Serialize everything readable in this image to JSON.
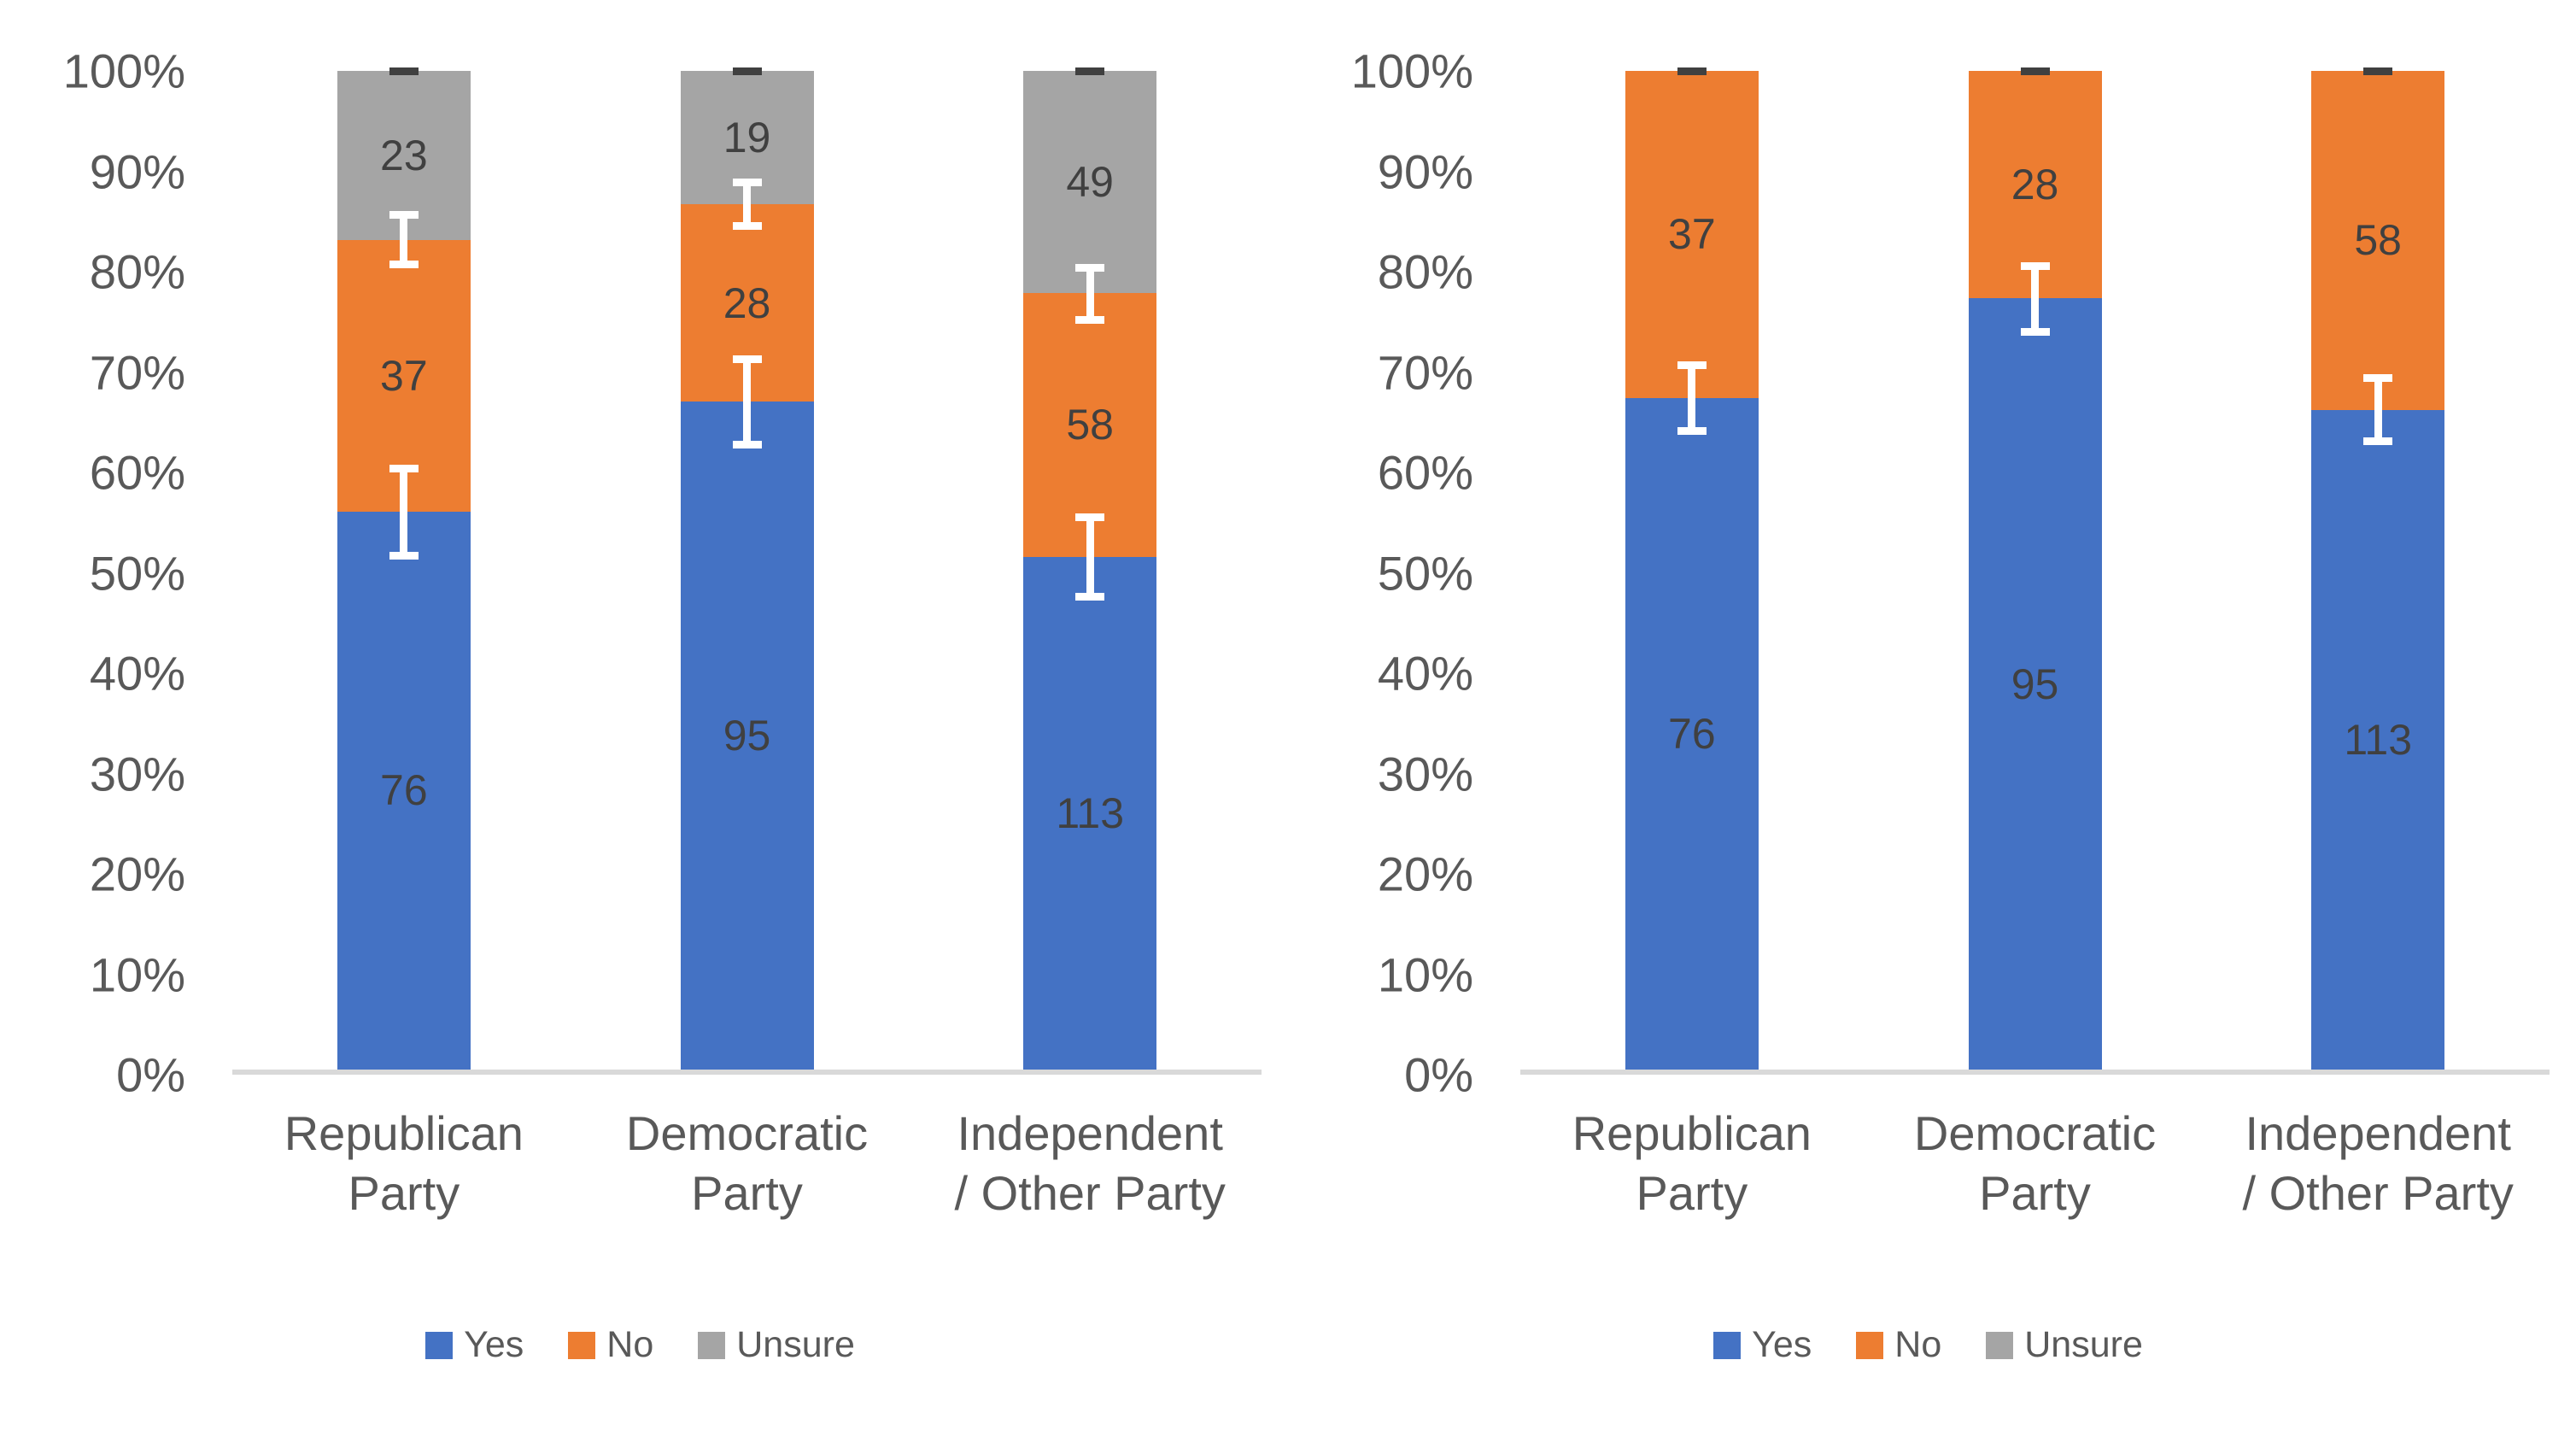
{
  "page": {
    "background": "#ffffff"
  },
  "colors": {
    "yes": "#4472C4",
    "no": "#ED7D31",
    "unsure": "#A5A5A5",
    "axis_line": "#D9D9D9",
    "tick_text": "#595959",
    "category_text": "#595959",
    "value_label_text": "#404040",
    "error_bar": "#FFFFFF",
    "top_dash": "#404040",
    "legend_text": "#595959"
  },
  "y_axis_ticks": [
    "100%",
    "90%",
    "80%",
    "70%",
    "60%",
    "50%",
    "40%",
    "30%",
    "20%",
    "10%",
    "0%"
  ],
  "legend": {
    "position": "bottom",
    "items": [
      {
        "label": "Yes",
        "color": "#4472C4"
      },
      {
        "label": "No",
        "color": "#ED7D31"
      },
      {
        "label": "Unsure",
        "color": "#A5A5A5"
      }
    ]
  },
  "chart_data": [
    {
      "id": "left-chart",
      "type": "bar",
      "stacked": true,
      "percent_stacked": true,
      "title": "",
      "xlabel": "",
      "ylabel": "",
      "ylim": [
        0,
        100
      ],
      "grid": false,
      "legend_position": "bottom",
      "categories": [
        "Republican Party",
        "Democratic Party",
        "Independent / Other Party"
      ],
      "category_label_lines": [
        [
          "Republican",
          "Party"
        ],
        [
          "Democratic",
          "Party"
        ],
        [
          "Independent",
          "/ Other Party"
        ]
      ],
      "series": [
        {
          "name": "Yes",
          "color": "#4472C4",
          "values": [
            76,
            95,
            113
          ]
        },
        {
          "name": "No",
          "color": "#ED7D31",
          "values": [
            37,
            28,
            58
          ]
        },
        {
          "name": "Unsure",
          "color": "#A5A5A5",
          "values": [
            23,
            19,
            49
          ]
        }
      ],
      "segment_percent_of_total": {
        "Yes": [
          55.9,
          66.9,
          51.4
        ],
        "No": [
          27.2,
          19.7,
          26.4
        ],
        "Unsure": [
          16.9,
          13.4,
          22.3
        ]
      },
      "error_bars": [
        {
          "category_index": 0,
          "boundary": "Yes/No",
          "low_pct": 51.1,
          "high_pct": 60.6
        },
        {
          "category_index": 0,
          "boundary": "No/Unsure",
          "low_pct": 80.2,
          "high_pct": 86.0
        },
        {
          "category_index": 1,
          "boundary": "Yes/No",
          "low_pct": 62.2,
          "high_pct": 71.5
        },
        {
          "category_index": 1,
          "boundary": "No/Unsure",
          "low_pct": 84.1,
          "high_pct": 89.2
        },
        {
          "category_index": 2,
          "boundary": "Yes/No",
          "low_pct": 47.0,
          "high_pct": 55.7
        },
        {
          "category_index": 2,
          "boundary": "No/Unsure",
          "low_pct": 74.7,
          "high_pct": 80.7
        }
      ],
      "top_dash_pct": 100
    },
    {
      "id": "right-chart",
      "type": "bar",
      "stacked": true,
      "percent_stacked": true,
      "title": "",
      "xlabel": "",
      "ylabel": "",
      "ylim": [
        0,
        100
      ],
      "grid": false,
      "legend_position": "bottom",
      "categories": [
        "Republican Party",
        "Democratic Party",
        "Independent / Other Party"
      ],
      "category_label_lines": [
        [
          "Republican",
          "Party"
        ],
        [
          "Democratic",
          "Party"
        ],
        [
          "Independent",
          "/ Other Party"
        ]
      ],
      "series": [
        {
          "name": "Yes",
          "color": "#4472C4",
          "values": [
            76,
            95,
            113
          ]
        },
        {
          "name": "No",
          "color": "#ED7D31",
          "values": [
            37,
            28,
            58
          ]
        },
        {
          "name": "Unsure",
          "color": "#A5A5A5",
          "values": [
            0,
            0,
            0
          ]
        }
      ],
      "segment_percent_of_total": {
        "Yes": [
          67.3,
          77.2,
          66.1
        ],
        "No": [
          32.7,
          22.8,
          33.9
        ],
        "Unsure": [
          0,
          0,
          0
        ]
      },
      "error_bars": [
        {
          "category_index": 0,
          "boundary": "Yes/No",
          "low_pct": 63.6,
          "high_pct": 70.9
        },
        {
          "category_index": 1,
          "boundary": "Yes/No",
          "low_pct": 73.5,
          "high_pct": 80.8
        },
        {
          "category_index": 2,
          "boundary": "Yes/No",
          "low_pct": 62.5,
          "high_pct": 69.6
        }
      ],
      "top_dash_pct": 100
    }
  ]
}
